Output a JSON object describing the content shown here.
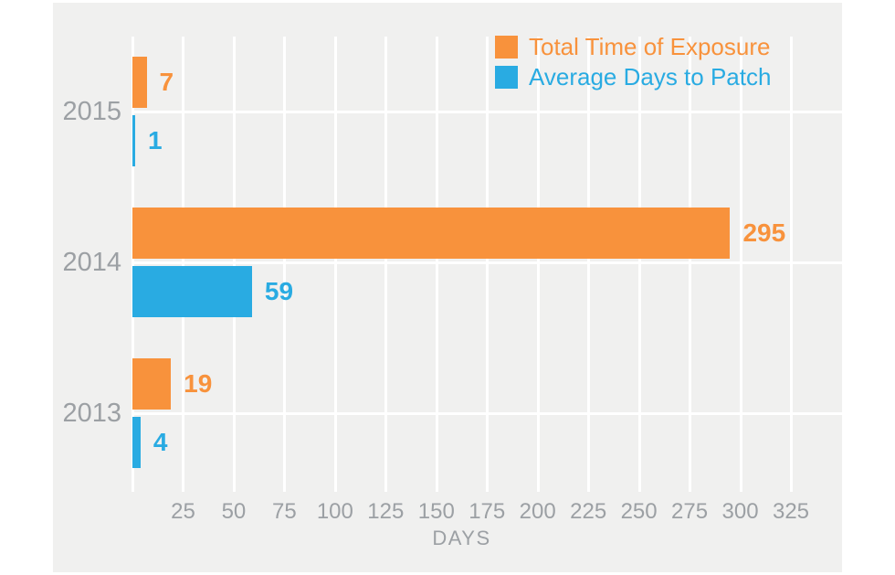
{
  "chart_data": {
    "type": "bar",
    "orientation": "horizontal",
    "title": "",
    "categories": [
      "2015",
      "2014",
      "2013"
    ],
    "series": [
      {
        "name": "Total Time of Exposure",
        "color": "#F8923C",
        "values": [
          7,
          295,
          19
        ]
      },
      {
        "name": "Average Days to Patch",
        "color": "#29ABE2",
        "values": [
          1,
          59,
          4
        ]
      }
    ],
    "value_labels": [
      [
        "7",
        "295",
        "19"
      ],
      [
        "1",
        "59",
        "4"
      ]
    ],
    "xlabel": "DAYS",
    "xlim": [
      0,
      325
    ],
    "xticks": [
      25,
      50,
      75,
      100,
      125,
      150,
      175,
      200,
      225,
      250,
      275,
      300,
      325
    ],
    "grid": "vertical-white-gridlines-every-25",
    "legend_position": "top-right",
    "legend": [
      "Total Time of Exposure",
      "Average Days to Patch"
    ]
  },
  "colors": {
    "page_background": "#FFFFFF",
    "panel_background": "#F0F0EF",
    "gridline": "#FFFFFF",
    "axis_text": "#9CA0A4",
    "series_orange": "#F8923C",
    "series_blue": "#29ABE2"
  }
}
